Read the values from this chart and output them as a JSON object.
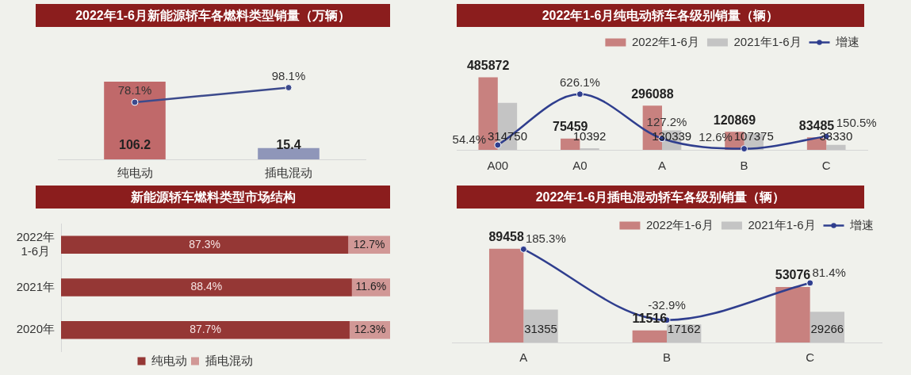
{
  "chart_data": [
    {
      "type": "bar",
      "title": "2022年1-6月新能源轿车各燃料类型销量（万辆）",
      "categories": [
        "纯电动",
        "插电混动"
      ],
      "series": [
        {
          "type": "bar",
          "colors": [
            "#c0696a",
            "#8f96b9"
          ],
          "values": [
            106.2,
            15.4
          ],
          "value_labels": [
            "106.2",
            "15.4"
          ]
        },
        {
          "type": "line",
          "color": "#3c4a8c",
          "values": [
            78.1,
            98.1
          ],
          "value_labels": [
            "78.1%",
            "98.1%"
          ]
        }
      ],
      "marker": "circle",
      "tick_labels": "x"
    },
    {
      "type": "bar",
      "title": "2022年1-6月纯电动轿车各级别销量（辆）",
      "categories": [
        "A00",
        "A0",
        "A",
        "B",
        "C"
      ],
      "series": [
        {
          "name": "2022年1-6月",
          "color": "#c8817f",
          "values": [
            485872,
            75459,
            296088,
            120869,
            83485
          ],
          "value_labels": [
            "485872",
            "75459",
            "296088",
            "120869",
            "83485"
          ]
        },
        {
          "name": "2021年1-6月",
          "color": "#c4c4c4",
          "values": [
            314750,
            10392,
            130339,
            107375,
            33330
          ],
          "value_labels": [
            "314750",
            "10392",
            "130339",
            "107375",
            "33330"
          ]
        },
        {
          "name": "增速",
          "type": "line",
          "axis": "y2",
          "color": "#2f3e8e",
          "values": [
            54.4,
            626.1,
            127.2,
            12.6,
            150.5
          ],
          "value_labels": [
            "54.4%",
            "626.1%",
            "127.2%",
            "12.6%",
            "150.5%"
          ]
        }
      ],
      "marker": "circle",
      "legend": "top right",
      "tick_labels": "x"
    },
    {
      "type": "bar",
      "orientation": "horizontal",
      "stacked": true,
      "title": "新能源轿车燃料类型市场结构",
      "categories": [
        "2022年1-6月",
        "2021年",
        "2020年"
      ],
      "series": [
        {
          "name": "纯电动",
          "color": "#953735",
          "values": [
            87.3,
            88.4,
            87.7
          ],
          "value_labels": [
            "87.3%",
            "88.4%",
            "87.7%"
          ]
        },
        {
          "name": "插电混动",
          "color": "#d19896",
          "values": [
            12.7,
            11.6,
            12.3
          ],
          "value_labels": [
            "12.7%",
            "11.6%",
            "12.3%"
          ]
        }
      ],
      "legend": "bottom",
      "tick_labels": "y"
    },
    {
      "type": "bar",
      "title": "2022年1-6月插电混动轿车各级别销量（辆）",
      "categories": [
        "A",
        "B",
        "C"
      ],
      "series": [
        {
          "name": "2022年1-6月",
          "color": "#c8817f",
          "values": [
            89458,
            11516,
            53076
          ],
          "value_labels": [
            "89458",
            "11516",
            "53076"
          ]
        },
        {
          "name": "2021年1-6月",
          "color": "#c4c4c4",
          "values": [
            31355,
            17162,
            29266
          ],
          "value_labels": [
            "31355",
            "17162",
            "29266"
          ]
        },
        {
          "name": "增速",
          "type": "line",
          "axis": "y2",
          "color": "#2f3e8e",
          "values": [
            185.3,
            -32.9,
            81.4
          ],
          "value_labels": [
            "185.3%",
            "-32.9%",
            "81.4%"
          ]
        }
      ],
      "marker": "circle",
      "legend": "top right",
      "tick_labels": "x"
    }
  ]
}
